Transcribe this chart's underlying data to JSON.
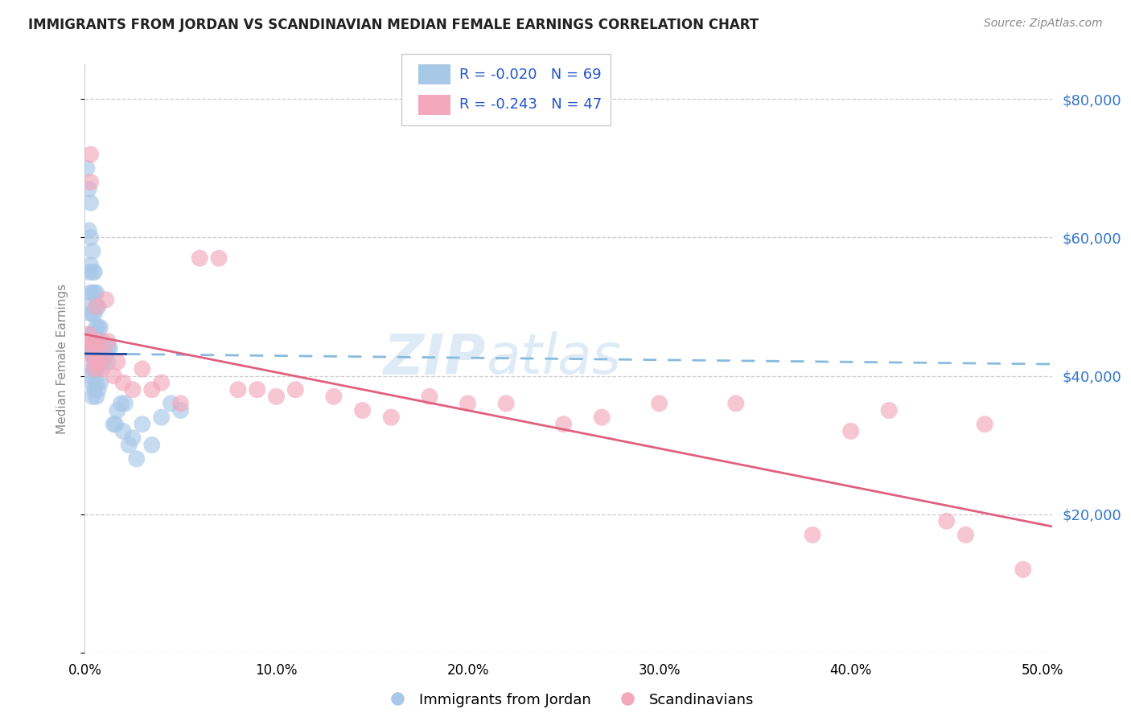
{
  "title": "IMMIGRANTS FROM JORDAN VS SCANDINAVIAN MEDIAN FEMALE EARNINGS CORRELATION CHART",
  "source": "Source: ZipAtlas.com",
  "ylabel": "Median Female Earnings",
  "blue_color": "#a8c8e8",
  "pink_color": "#f4a8bc",
  "blue_line_solid": "#1a4499",
  "blue_line_dashed": "#88bbdd",
  "pink_line_solid": "#e06080",
  "xlim": [
    0.0,
    0.505
  ],
  "ylim": [
    0,
    85000
  ],
  "yticks": [
    0,
    20000,
    40000,
    60000,
    80000
  ],
  "ytick_labels": [
    "",
    "$20,000",
    "$40,000",
    "$60,000",
    "$80,000"
  ],
  "xtick_vals": [
    0.0,
    0.1,
    0.2,
    0.3,
    0.4,
    0.5
  ],
  "xtick_labels": [
    "0.0%",
    "10.0%",
    "20.0%",
    "30.0%",
    "40.0%",
    "50.0%"
  ],
  "legend_r_blue": "R = -0.020",
  "legend_n_blue": "N = 69",
  "legend_r_pink": "R = -0.243",
  "legend_n_pink": "N = 47",
  "blue_line_intercept": 43200,
  "blue_line_slope": -3000,
  "pink_line_intercept": 46000,
  "pink_line_slope": -55000,
  "jordan_x": [
    0.001,
    0.001,
    0.002,
    0.002,
    0.002,
    0.002,
    0.003,
    0.003,
    0.003,
    0.003,
    0.003,
    0.003,
    0.003,
    0.003,
    0.004,
    0.004,
    0.004,
    0.004,
    0.004,
    0.004,
    0.004,
    0.004,
    0.004,
    0.005,
    0.005,
    0.005,
    0.005,
    0.005,
    0.005,
    0.005,
    0.006,
    0.006,
    0.006,
    0.006,
    0.006,
    0.006,
    0.006,
    0.006,
    0.007,
    0.007,
    0.007,
    0.007,
    0.007,
    0.008,
    0.008,
    0.008,
    0.008,
    0.009,
    0.009,
    0.01,
    0.01,
    0.011,
    0.012,
    0.012,
    0.013,
    0.015,
    0.016,
    0.017,
    0.019,
    0.02,
    0.021,
    0.023,
    0.025,
    0.027,
    0.03,
    0.035,
    0.04,
    0.045,
    0.05
  ],
  "jordan_y": [
    44000,
    70000,
    67000,
    61000,
    55000,
    50000,
    65000,
    60000,
    56000,
    52000,
    49000,
    46000,
    43000,
    40000,
    58000,
    55000,
    52000,
    49000,
    46000,
    43000,
    41000,
    39000,
    37000,
    55000,
    52000,
    49000,
    46000,
    43000,
    41000,
    38000,
    52000,
    50000,
    47000,
    45000,
    43000,
    41000,
    39000,
    37000,
    50000,
    47000,
    44000,
    41000,
    38000,
    47000,
    44000,
    42000,
    39000,
    45000,
    42000,
    44000,
    42000,
    43000,
    44000,
    42000,
    44000,
    33000,
    33000,
    35000,
    36000,
    32000,
    36000,
    30000,
    31000,
    28000,
    33000,
    30000,
    34000,
    36000,
    35000
  ],
  "scandi_x": [
    0.001,
    0.002,
    0.003,
    0.003,
    0.004,
    0.004,
    0.005,
    0.005,
    0.005,
    0.006,
    0.007,
    0.008,
    0.009,
    0.01,
    0.011,
    0.012,
    0.015,
    0.017,
    0.02,
    0.025,
    0.03,
    0.035,
    0.04,
    0.05,
    0.06,
    0.07,
    0.08,
    0.09,
    0.1,
    0.11,
    0.13,
    0.145,
    0.16,
    0.18,
    0.2,
    0.22,
    0.25,
    0.27,
    0.3,
    0.34,
    0.38,
    0.4,
    0.42,
    0.45,
    0.46,
    0.47,
    0.49
  ],
  "scandi_y": [
    45000,
    46000,
    68000,
    72000,
    45000,
    43000,
    44000,
    42000,
    41000,
    50000,
    45000,
    42000,
    41000,
    43000,
    51000,
    45000,
    40000,
    42000,
    39000,
    38000,
    41000,
    38000,
    39000,
    36000,
    57000,
    57000,
    38000,
    38000,
    37000,
    38000,
    37000,
    35000,
    34000,
    37000,
    36000,
    36000,
    33000,
    34000,
    36000,
    36000,
    17000,
    32000,
    35000,
    19000,
    17000,
    33000,
    12000
  ]
}
